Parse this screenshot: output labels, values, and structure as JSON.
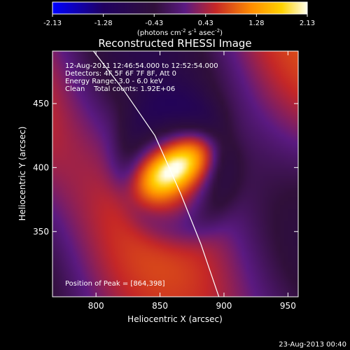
{
  "colorbar": {
    "ticks": [
      "-2.13",
      "-1.28",
      "-0.43",
      "0.43",
      "1.28",
      "2.13"
    ],
    "tick_values": [
      -2.13,
      -1.28,
      -0.43,
      0.43,
      1.28,
      2.13
    ],
    "range": [
      -2.13,
      2.13
    ],
    "unit_main": "(photons cm",
    "unit_exp1": "-2",
    "unit_mid": " s",
    "unit_exp2": "-1",
    "unit_tail": " asec",
    "unit_exp3": "-2",
    "unit_close": ")"
  },
  "info": {
    "line1": "12-Aug-2011 12:46:54.000 to 12:52:54.000",
    "line2": "Detectors: 4F 5F 6F 7F 8F, Att 0",
    "line3": "Energy Range: 3.0 - 6.0 keV",
    "line4": "Clean    Total counts: 1.92E+06"
  },
  "peak_label": "Position of Peak = [864,398]",
  "footer_date": "23-Aug-2013 00:40",
  "colors": {
    "background": "#000000",
    "limb": "#ffffff",
    "cmap": [
      "#0000ff",
      "#200060",
      "#30103a",
      "#5b1a82",
      "#c52727",
      "#ff8c00",
      "#ffd200",
      "#fffff0"
    ]
  },
  "chart_data": {
    "type": "heatmap",
    "title": "Reconstructed RHESSI Image",
    "xlabel": "Heliocentric X (arcsec)",
    "ylabel": "Heliocentric Y (arcsec)",
    "xlim": [
      766,
      958
    ],
    "ylim": [
      299,
      491
    ],
    "xticks": [
      800,
      850,
      900,
      950
    ],
    "yticks": [
      350,
      400,
      450
    ],
    "x_tick_labels": [
      "800",
      "850",
      "900",
      "950"
    ],
    "y_tick_labels": [
      "350",
      "400",
      "450"
    ],
    "grid": false,
    "peak": {
      "x": 864,
      "y": 398,
      "value": 2.13
    },
    "sources": [
      {
        "x": 862,
        "y": 400,
        "sx": 12,
        "sy": 22,
        "angle_deg": 35,
        "amp": 2.13
      }
    ],
    "background_level": 0.1,
    "limb_curve": [
      [
        798,
        491
      ],
      [
        822,
        460
      ],
      [
        846,
        425
      ],
      [
        866,
        380
      ],
      [
        882,
        340
      ],
      [
        896,
        299
      ]
    ]
  }
}
